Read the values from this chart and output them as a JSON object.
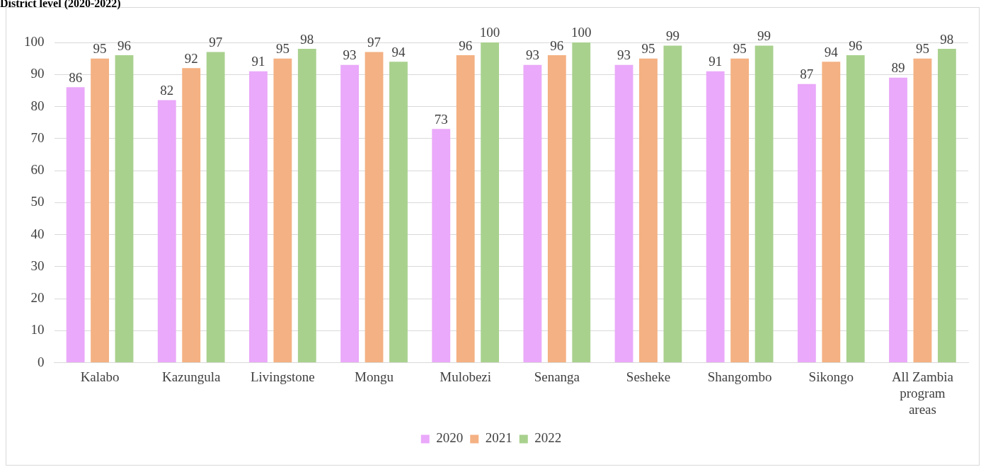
{
  "chart_data": {
    "type": "bar",
    "title": "District level (2020-2022)",
    "categories": [
      "Kalabo",
      "Kazungula",
      "Livingstone",
      "Mongu",
      "Mulobezi",
      "Senanga",
      "Sesheke",
      "Shangombo",
      "Sikongo",
      "All Zambia program areas"
    ],
    "series": [
      {
        "name": "2020",
        "color": "#eaa9fa",
        "values": [
          86,
          82,
          91,
          93,
          73,
          93,
          93,
          91,
          87,
          89
        ]
      },
      {
        "name": "2021",
        "color": "#f4b183",
        "values": [
          95,
          92,
          95,
          97,
          96,
          96,
          95,
          95,
          94,
          95
        ]
      },
      {
        "name": "2022",
        "color": "#a9d18e",
        "values": [
          96,
          97,
          98,
          94,
          100,
          100,
          99,
          99,
          96,
          98
        ]
      }
    ],
    "ylim": [
      0,
      100
    ],
    "yticks": [
      0,
      10,
      20,
      30,
      40,
      50,
      60,
      70,
      80,
      90,
      100
    ],
    "grid": "y",
    "legend": "bottom",
    "data_labels": true
  }
}
